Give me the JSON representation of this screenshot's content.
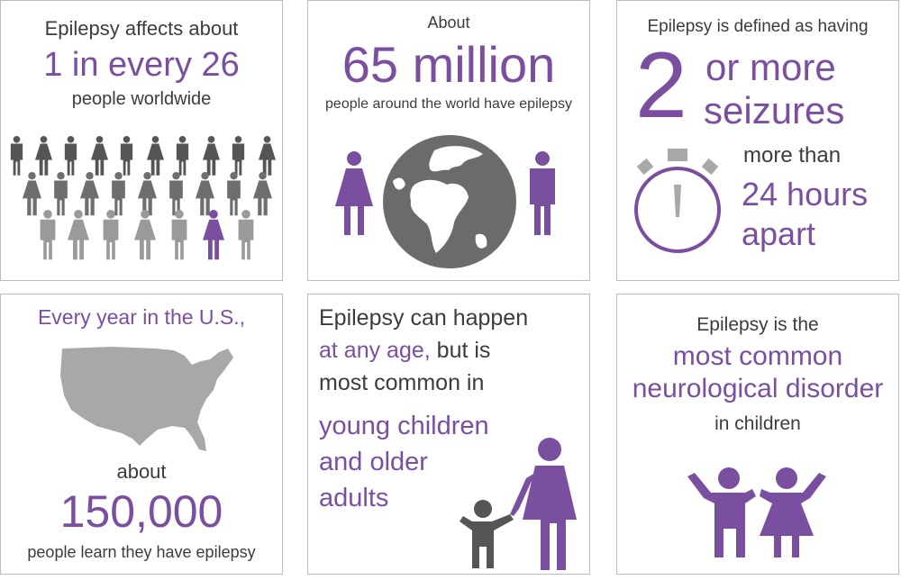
{
  "panels": {
    "p1": {
      "line1": "Epilepsy affects about",
      "stat": "1 in every 26",
      "line3": "people worldwide",
      "icon": "crowd-people-icon"
    },
    "p2": {
      "line1": "About",
      "stat": "65 million",
      "line3": "people around the world have epilepsy",
      "icons": [
        "woman-icon",
        "globe-icon",
        "man-icon"
      ]
    },
    "p3": {
      "line1": "Epilepsy is defined as having",
      "big_number": "2",
      "stat_a": "or more",
      "stat_b": "seizures",
      "line_more": "more than",
      "hours_a": "24 hours",
      "hours_b": "apart",
      "icon": "stopwatch-icon"
    },
    "p4": {
      "line1": "Every year in the U.S.,",
      "about": "about",
      "stat": "150,000",
      "line3": "people learn they have epilepsy",
      "icon": "usa-map-icon"
    },
    "p5": {
      "line1": "Epilepsy can happen",
      "line2_purple": "at any age,",
      "line2_rest": " but is",
      "line3": "most common in",
      "purple_a": "young children",
      "purple_b": "and older",
      "purple_c": "adults",
      "icon": "child-and-adult-icon"
    },
    "p6": {
      "line1": "Epilepsy is the",
      "stat_a": "most common",
      "stat_b": "neurological disorder",
      "line3": "in children",
      "icon": "two-children-icon"
    }
  },
  "colors": {
    "purple": "#7b4fa0",
    "dark_gray": "#555555",
    "mid_gray": "#8a8a8a",
    "light_gray": "#a8a8a8",
    "border": "#bdbdbd"
  }
}
